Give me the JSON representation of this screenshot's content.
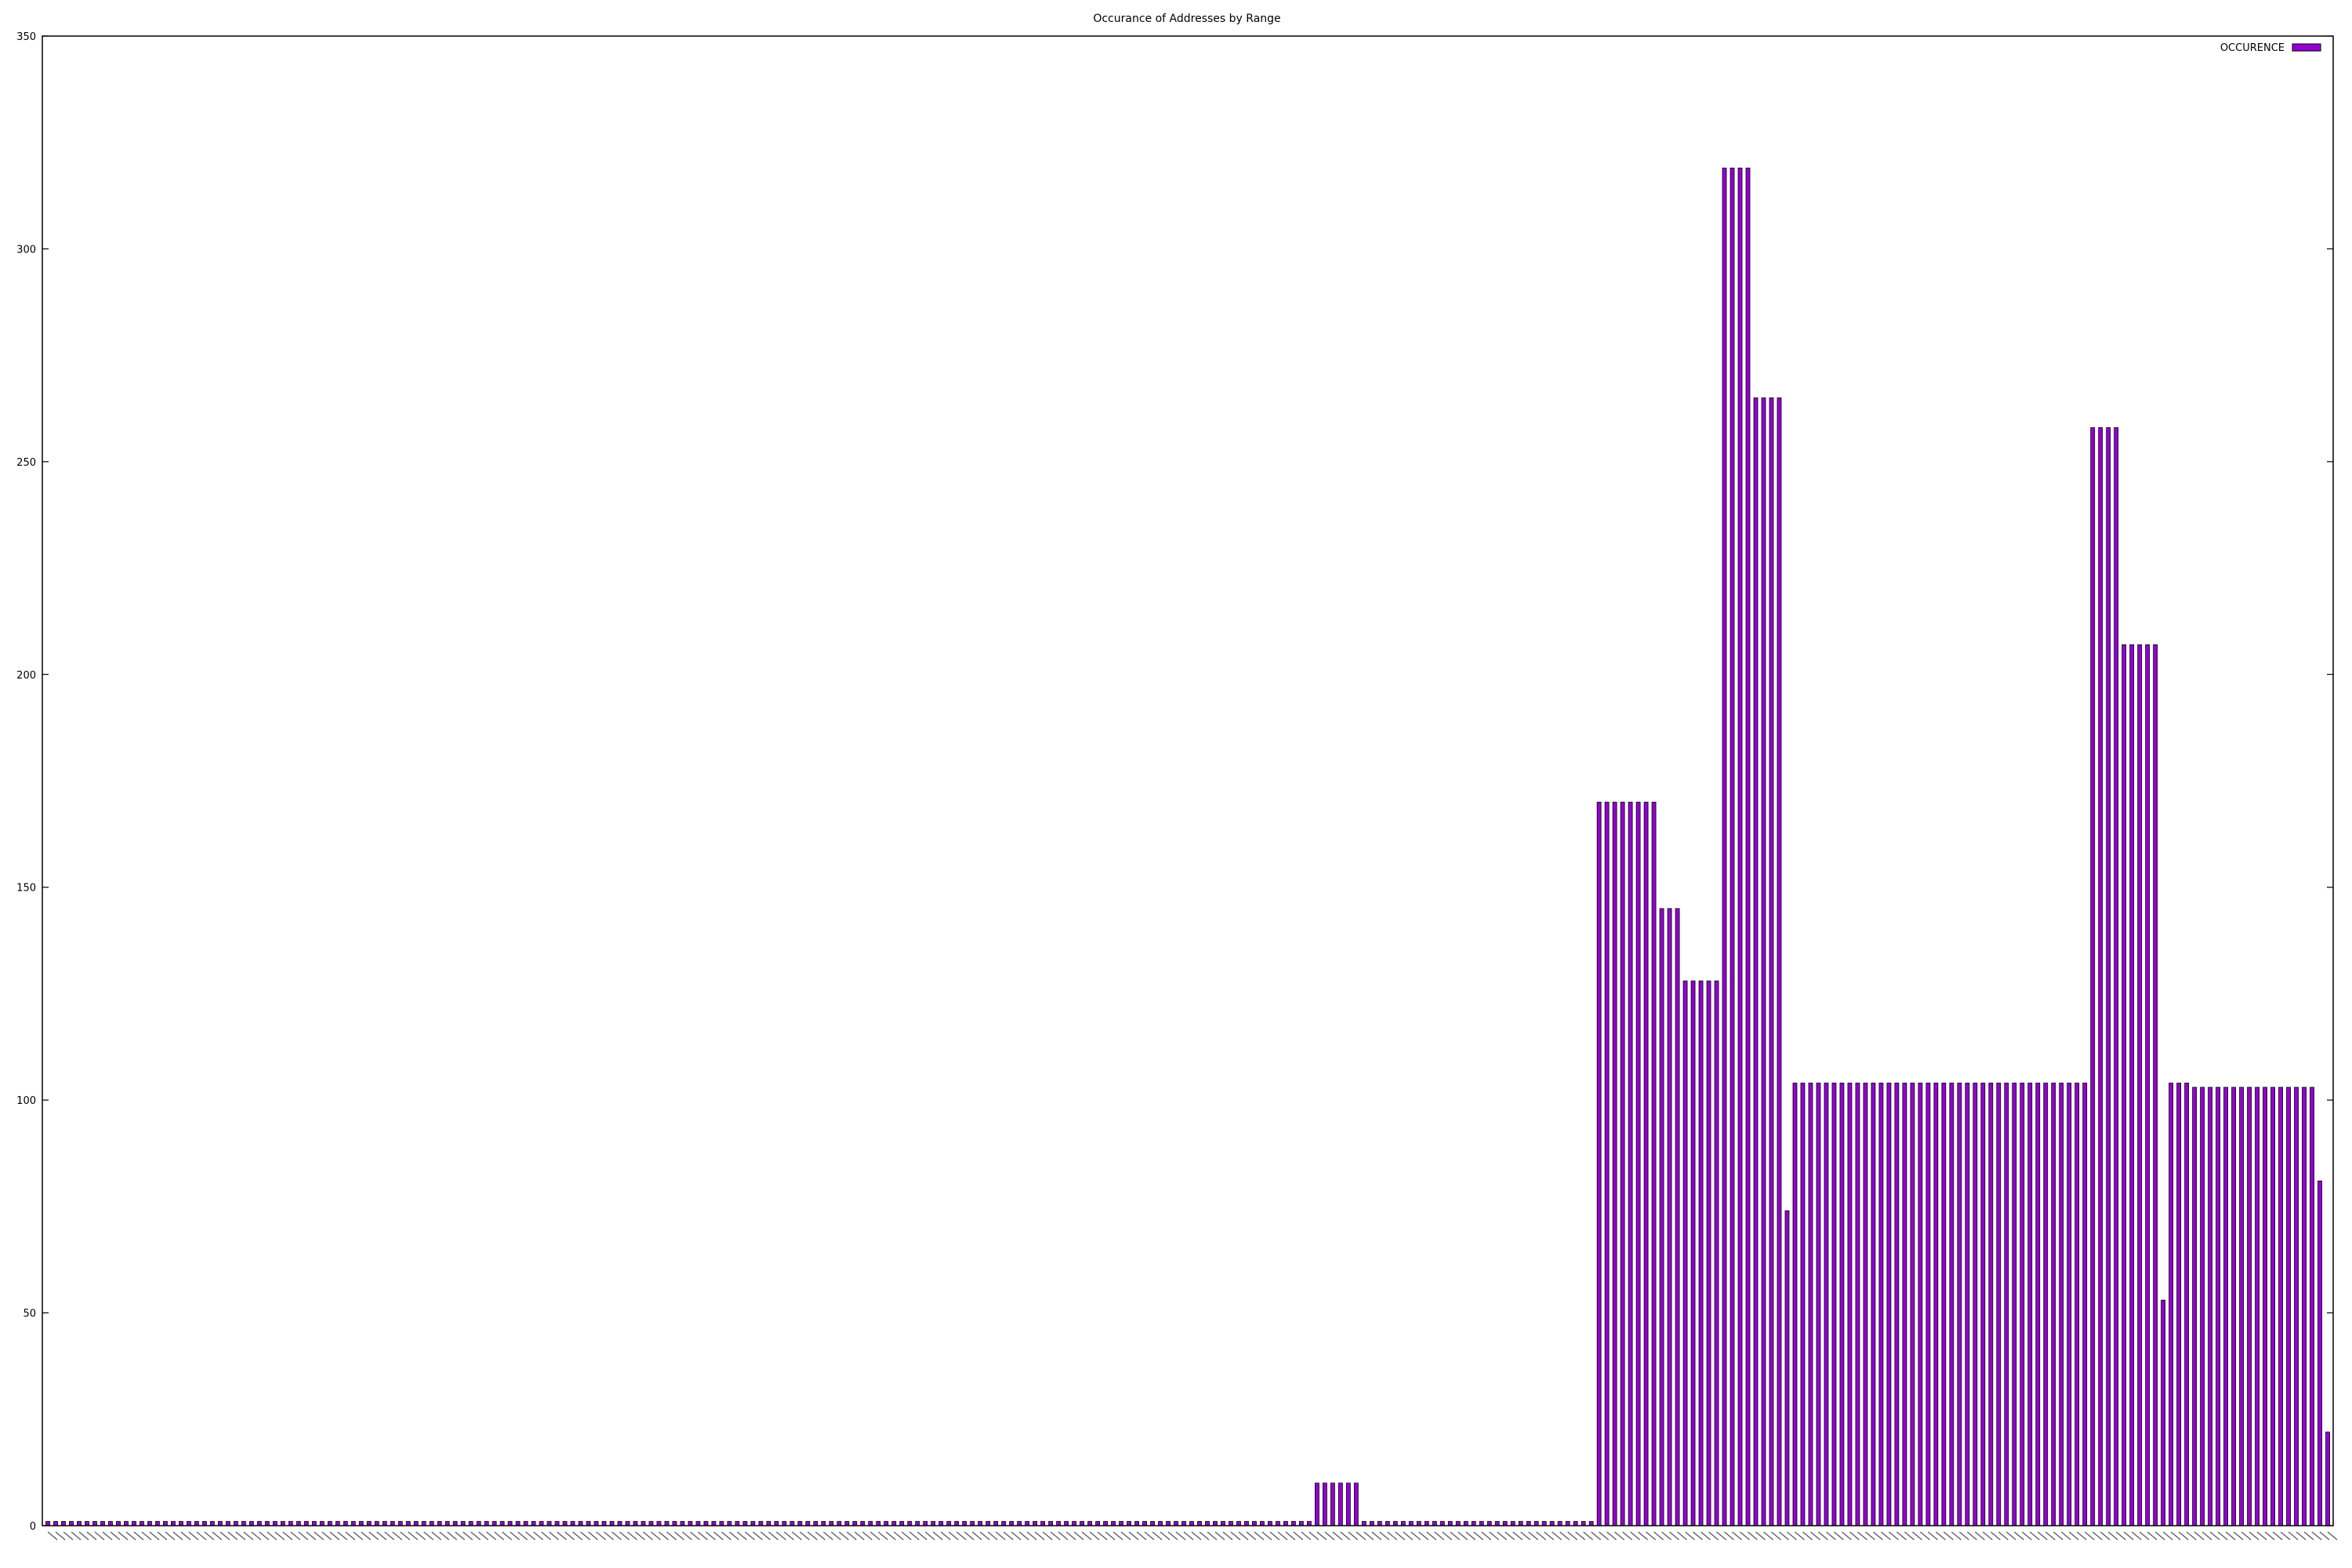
{
  "chart_data": {
    "type": "bar",
    "title": "Occurance of Addresses by Range",
    "legend": {
      "label": "OCCURENCE",
      "position": "top-right"
    },
    "series": [
      {
        "name": "OCCURENCE",
        "color": "#9400d3"
      }
    ],
    "ylim": [
      0,
      350
    ],
    "yticks": [
      0,
      50,
      100,
      150,
      200,
      250,
      300,
      350
    ],
    "grid": false,
    "segments": [
      {
        "count": 162,
        "value": 1
      },
      {
        "count": 6,
        "value": 10
      },
      {
        "count": 30,
        "value": 1
      },
      {
        "count": 8,
        "value": 170
      },
      {
        "count": 3,
        "value": 145
      },
      {
        "count": 5,
        "value": 128
      },
      {
        "count": 4,
        "value": 319
      },
      {
        "count": 4,
        "value": 265
      },
      {
        "count": 1,
        "value": 74
      },
      {
        "count": 38,
        "value": 104
      },
      {
        "count": 4,
        "value": 258
      },
      {
        "count": 5,
        "value": 207
      },
      {
        "count": 1,
        "value": 53
      },
      {
        "count": 3,
        "value": 104
      },
      {
        "count": 16,
        "value": 103
      },
      {
        "count": 1,
        "value": 81
      },
      {
        "count": 1,
        "value": 22
      }
    ]
  }
}
